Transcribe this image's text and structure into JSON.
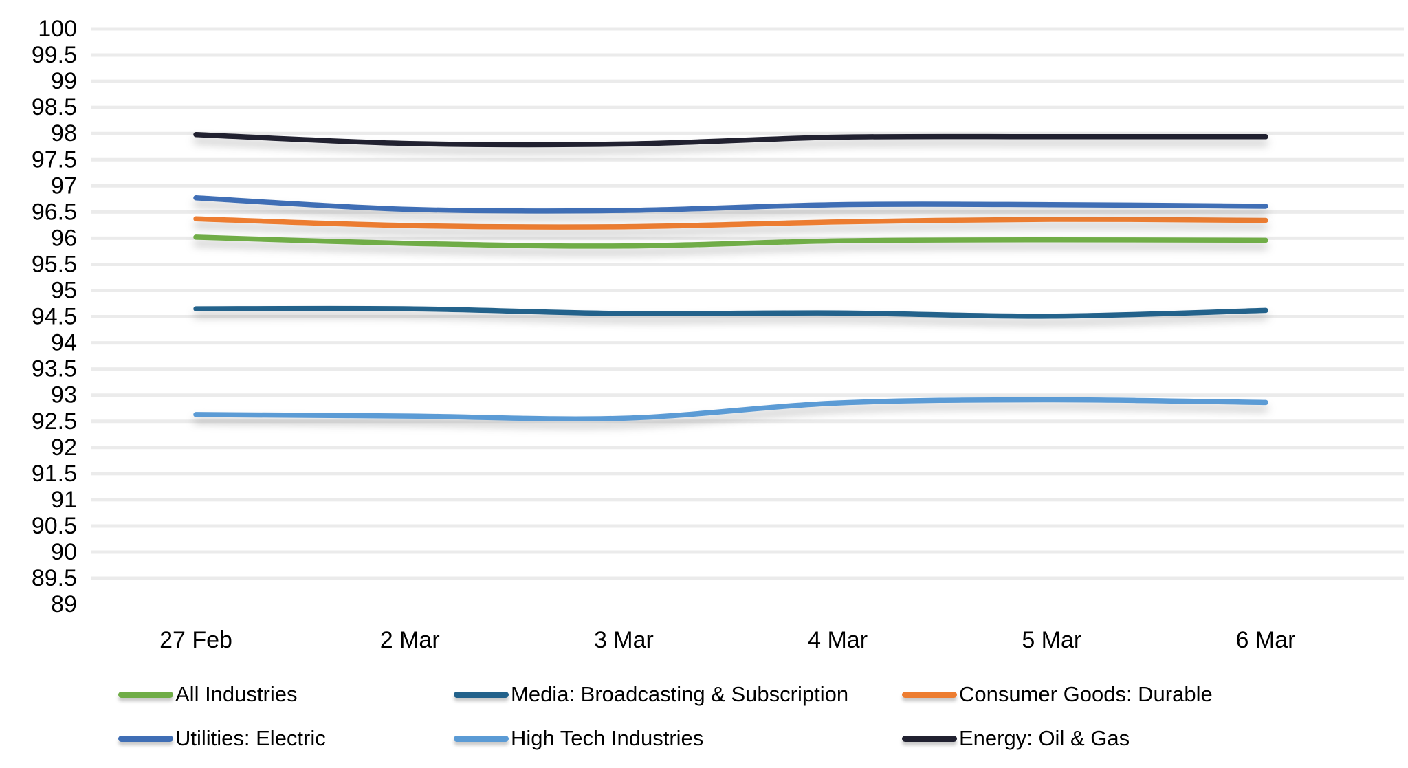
{
  "chart_data": {
    "type": "line",
    "title": "",
    "xlabel": "",
    "ylabel": "",
    "categories": [
      "27 Feb",
      "2 Mar",
      "3 Mar",
      "4 Mar",
      "5 Mar",
      "6 Mar"
    ],
    "ylim": [
      89,
      100
    ],
    "ytick_step": 0.5,
    "yticks": [
      "100",
      "99.5",
      "99",
      "98.5",
      "98",
      "97.5",
      "97",
      "96.5",
      "96",
      "95.5",
      "95",
      "94.5",
      "94",
      "93.5",
      "93",
      "92.5",
      "92",
      "91.5",
      "91",
      "90.5",
      "90",
      "89.5",
      "89"
    ],
    "grid": true,
    "line_style": "smooth",
    "legend_position": "bottom",
    "series": [
      {
        "name": "All Industries",
        "color": "#70AD47",
        "values": [
          96.02,
          95.9,
          95.85,
          95.95,
          95.97,
          95.96
        ]
      },
      {
        "name": "Media: Broadcasting & Subscription",
        "color": "#23628B",
        "values": [
          94.65,
          94.65,
          94.56,
          94.57,
          94.51,
          94.62
        ]
      },
      {
        "name": "Consumer Goods: Durable",
        "color": "#ED7D31",
        "values": [
          96.37,
          96.24,
          96.22,
          96.31,
          96.36,
          96.34
        ]
      },
      {
        "name": "Utilities: Electric",
        "color": "#3F6EB5",
        "values": [
          96.77,
          96.55,
          96.53,
          96.64,
          96.64,
          96.61
        ]
      },
      {
        "name": "High Tech Industries",
        "color": "#5B9BD5",
        "values": [
          92.63,
          92.6,
          92.56,
          92.85,
          92.91,
          92.86
        ]
      },
      {
        "name": "Energy: Oil & Gas",
        "color": "#212130",
        "values": [
          97.98,
          97.81,
          97.8,
          97.93,
          97.94,
          97.94
        ]
      }
    ]
  }
}
